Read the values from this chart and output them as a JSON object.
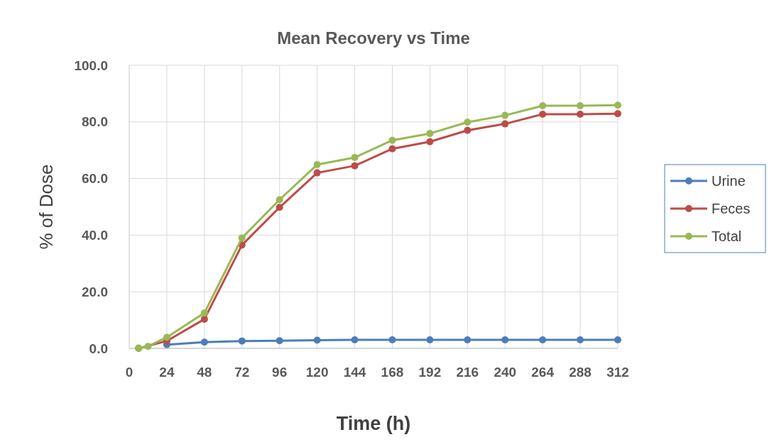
{
  "chart_data": {
    "type": "line",
    "title": "Mean Recovery vs Time",
    "xlabel": "Time (h)",
    "ylabel": "% of Dose",
    "x": [
      6,
      12,
      24,
      48,
      72,
      96,
      120,
      144,
      168,
      192,
      216,
      240,
      264,
      288,
      312
    ],
    "series": [
      {
        "name": "Urine",
        "color": "#4a7ebb",
        "values": [
          null,
          null,
          1.3,
          2.2,
          2.6,
          2.7,
          2.9,
          3.0,
          3.0,
          3.0,
          3.0,
          3.0,
          3.0,
          3.0,
          3.0
        ]
      },
      {
        "name": "Feces",
        "color": "#be4b48",
        "values": [
          0.0,
          null,
          2.6,
          10.3,
          36.5,
          49.8,
          62.0,
          64.5,
          70.5,
          73.0,
          77.0,
          79.3,
          82.7,
          82.7,
          82.9
        ]
      },
      {
        "name": "Total",
        "color": "#98b954",
        "values": [
          0.1,
          0.7,
          3.9,
          12.5,
          39.0,
          52.5,
          64.9,
          67.4,
          73.5,
          75.9,
          79.9,
          82.3,
          85.7,
          85.7,
          85.9
        ]
      }
    ],
    "xlim": [
      0,
      312
    ],
    "xticks": [
      0,
      24,
      48,
      72,
      96,
      120,
      144,
      168,
      192,
      216,
      240,
      264,
      288,
      312
    ],
    "ylim": [
      0,
      100
    ],
    "yticks": [
      {
        "value": 0,
        "label": "0.0"
      },
      {
        "value": 20,
        "label": "20.0"
      },
      {
        "value": 40,
        "label": "40.0"
      },
      {
        "value": 60,
        "label": "60.0"
      },
      {
        "value": 80,
        "label": "80.0"
      },
      {
        "value": 100,
        "label": "100.0"
      }
    ],
    "grid": true,
    "legend": "right",
    "marker": "circle",
    "line_style": "solid"
  }
}
